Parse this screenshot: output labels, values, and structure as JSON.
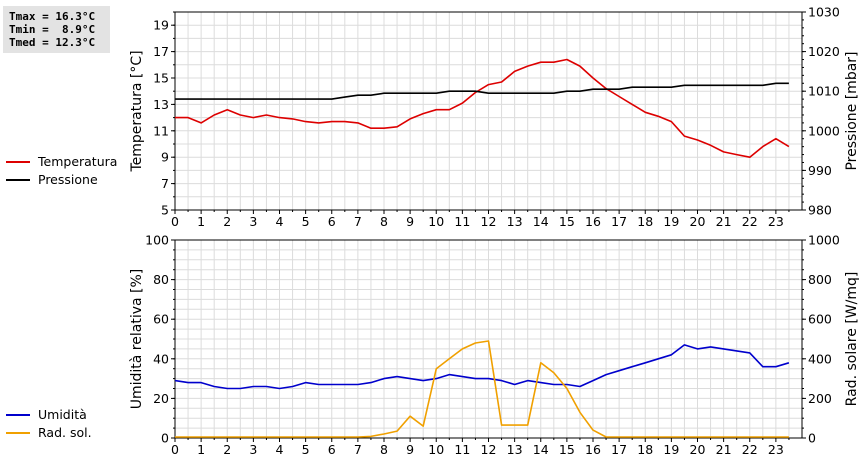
{
  "stats": {
    "lines": [
      "Tmax = 16.3°C",
      "Tmin =  8.9°C",
      "Tmed = 12.3°C"
    ]
  },
  "chart_data": [
    {
      "type": "line",
      "x_ticks": [
        "0",
        "1",
        "2",
        "3",
        "4",
        "5",
        "6",
        "7",
        "8",
        "9",
        "10",
        "11",
        "12",
        "13",
        "14",
        "15",
        "16",
        "17",
        "18",
        "19",
        "20",
        "21",
        "22",
        "23"
      ],
      "ylabel": "Temperatura [°C]",
      "y2label": "Pressione [mbar]",
      "ylim": [
        5,
        20
      ],
      "y_ticks": [
        "5",
        "7",
        "9",
        "11",
        "13",
        "15",
        "17",
        "19"
      ],
      "y2lim": [
        980,
        1030
      ],
      "y2_ticks": [
        "980",
        "990",
        "1000",
        "1010",
        "1020",
        "1030"
      ],
      "grid": true,
      "legend_placement": "left",
      "series": [
        {
          "name": "Temperatura",
          "color": "#dd0000",
          "axis": "left",
          "x": [
            0,
            0.5,
            1,
            1.5,
            2,
            2.5,
            3,
            3.5,
            4,
            4.5,
            5,
            5.5,
            6,
            6.5,
            7,
            7.5,
            8,
            8.5,
            9,
            9.5,
            10,
            10.5,
            11,
            11.5,
            12,
            12.5,
            13,
            13.5,
            14,
            14.5,
            15,
            15.5,
            16,
            16.5,
            17,
            17.5,
            18,
            18.5,
            19,
            19.5,
            20,
            20.5,
            21,
            21.5,
            22,
            22.5,
            23,
            23.5
          ],
          "values": [
            12.0,
            12.0,
            11.6,
            12.2,
            12.6,
            12.2,
            12.0,
            12.2,
            12.0,
            11.9,
            11.7,
            11.6,
            11.7,
            11.7,
            11.6,
            11.2,
            11.2,
            11.3,
            11.9,
            12.3,
            12.6,
            12.6,
            13.1,
            13.9,
            14.5,
            14.7,
            15.5,
            15.9,
            16.2,
            16.2,
            16.4,
            15.9,
            15.0,
            14.2,
            13.6,
            13.0,
            12.4,
            12.1,
            11.7,
            10.6,
            10.3,
            9.9,
            9.4,
            9.2,
            9.0,
            9.8,
            10.4,
            9.8
          ]
        },
        {
          "name": "Pressione",
          "color": "#000000",
          "axis": "right",
          "x": [
            0,
            1,
            2,
            3,
            4,
            5,
            6,
            6.5,
            7,
            7.5,
            8,
            9,
            10,
            10.5,
            11.5,
            12,
            14,
            14.5,
            15,
            15.5,
            16,
            17,
            17.5,
            19,
            19.5,
            22,
            22.5,
            23,
            23.5
          ],
          "values": [
            1008,
            1008,
            1008,
            1008,
            1008,
            1008,
            1008,
            1008.5,
            1009,
            1009,
            1009.5,
            1009.5,
            1009.5,
            1010,
            1010,
            1009.5,
            1009.5,
            1009.5,
            1010,
            1010,
            1010.5,
            1010.5,
            1011,
            1011,
            1011.5,
            1011.5,
            1011.5,
            1012,
            1012
          ]
        }
      ]
    },
    {
      "type": "line",
      "x_ticks": [
        "0",
        "1",
        "2",
        "3",
        "4",
        "5",
        "6",
        "7",
        "8",
        "9",
        "10",
        "11",
        "12",
        "13",
        "14",
        "15",
        "16",
        "17",
        "18",
        "19",
        "20",
        "21",
        "22",
        "23"
      ],
      "ylabel": "Umidità relativa [%]",
      "y2label": "Rad. solare [W/mq]",
      "ylim": [
        0,
        100
      ],
      "y_ticks": [
        "0",
        "20",
        "40",
        "60",
        "80",
        "100"
      ],
      "y2lim": [
        0,
        1000
      ],
      "y2_ticks": [
        "0",
        "200",
        "400",
        "600",
        "800",
        "1000"
      ],
      "grid": true,
      "legend_placement": "left",
      "series": [
        {
          "name": "Umidità",
          "color": "#0000cc",
          "axis": "left",
          "x": [
            0,
            0.5,
            1,
            1.5,
            2,
            2.5,
            3,
            3.5,
            4,
            4.5,
            5,
            5.5,
            6,
            6.5,
            7,
            7.5,
            8,
            8.5,
            9,
            9.5,
            10,
            10.5,
            11,
            11.5,
            12,
            12.5,
            13,
            13.5,
            14,
            14.5,
            15,
            15.5,
            16,
            16.5,
            17,
            17.5,
            18,
            18.5,
            19,
            19.5,
            20,
            20.5,
            21,
            21.5,
            22,
            22.5,
            23,
            23.5
          ],
          "values": [
            29,
            28,
            28,
            26,
            25,
            25,
            26,
            26,
            25,
            26,
            28,
            27,
            27,
            27,
            27,
            28,
            30,
            31,
            30,
            29,
            30,
            32,
            31,
            30,
            30,
            29,
            27,
            29,
            28,
            27,
            27,
            26,
            29,
            32,
            34,
            36,
            38,
            40,
            42,
            47,
            45,
            46,
            45,
            44,
            43,
            36,
            36,
            38
          ]
        },
        {
          "name": "Rad. sol.",
          "color": "#f0a000",
          "axis": "right",
          "x": [
            0,
            1,
            2,
            3,
            4,
            5,
            6,
            7,
            7.5,
            8,
            8.5,
            9,
            9.5,
            10,
            10.5,
            11,
            11.5,
            12,
            12.5,
            13,
            13.5,
            14,
            14.5,
            15,
            15.5,
            16,
            16.5,
            17,
            18,
            19,
            20,
            21,
            22,
            23,
            23.5
          ],
          "values": [
            5,
            5,
            5,
            5,
            5,
            5,
            5,
            5,
            8,
            20,
            35,
            110,
            60,
            350,
            400,
            450,
            480,
            490,
            65,
            65,
            65,
            380,
            330,
            250,
            130,
            40,
            5,
            5,
            5,
            5,
            5,
            5,
            5,
            5,
            5
          ]
        }
      ]
    }
  ]
}
